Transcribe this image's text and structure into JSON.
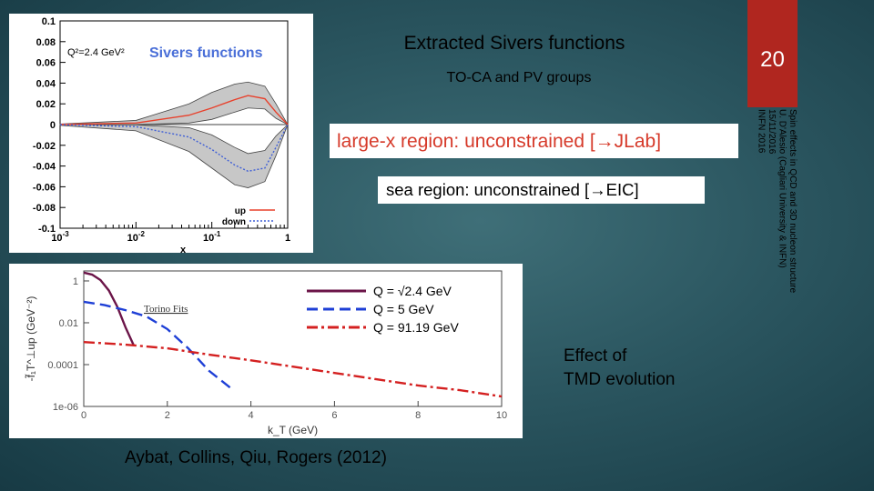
{
  "slide": {
    "title": "Extracted Sivers functions",
    "subtitle": "TO-CA and PV groups",
    "page_number": "20",
    "footer_lines": [
      "Spin effects in QCD and 3D nucleon structure",
      "U. D'Alesio (Cagliari University & INFN)",
      "15/11/2016",
      "INFN 2016"
    ],
    "jlab_note": "large-x region: unconstrained [→JLab]",
    "eic_note": "sea region: unconstrained [→EIC]",
    "tmd_note_lines": [
      "Effect of",
      "TMD evolution"
    ],
    "citation": "Aybat, Collins, Qiu, Rogers (2012)",
    "colors": {
      "accent_red": "#b0261f",
      "up_curve": "#e8402b",
      "down_curve": "#3f5fd6",
      "jlab_text": "#d63a2a"
    }
  },
  "chart_data": [
    {
      "type": "area",
      "title": "Sivers functions",
      "annotation": "Q²=2.4 GeV²",
      "xlabel": "x",
      "ylabel": "",
      "x_scale": "log",
      "xlim": [
        0.001,
        1
      ],
      "ylim": [
        -0.1,
        0.1
      ],
      "y_ticks": [
        "0.1",
        "0.08",
        "0.06",
        "0.04",
        "0.02",
        "0",
        "-0.02",
        "-0.04",
        "-0.06",
        "-0.08",
        "-0.1"
      ],
      "x_tick_labels": [
        "10^-3",
        "10^-2",
        "10^-1",
        "1"
      ],
      "legend": [
        {
          "name": "up",
          "style": "solid"
        },
        {
          "name": "down",
          "style": "dotted"
        }
      ],
      "series": [
        {
          "name": "up",
          "x": [
            0.001,
            0.01,
            0.05,
            0.1,
            0.2,
            0.3,
            0.5,
            0.7,
            1
          ],
          "values": [
            0.0001,
            0.0015,
            0.009,
            0.016,
            0.024,
            0.028,
            0.025,
            0.012,
            0
          ],
          "band_upper": [
            0.0005,
            0.004,
            0.02,
            0.031,
            0.039,
            0.041,
            0.037,
            0.02,
            0
          ],
          "band_lower": [
            0,
            0,
            0.0015,
            0.005,
            0.012,
            0.016,
            0.015,
            0.006,
            0
          ]
        },
        {
          "name": "down",
          "x": [
            0.001,
            0.01,
            0.05,
            0.1,
            0.2,
            0.3,
            0.5,
            0.7,
            1
          ],
          "values": [
            -0.0001,
            -0.002,
            -0.012,
            -0.024,
            -0.039,
            -0.045,
            -0.042,
            -0.022,
            0
          ],
          "band_upper": [
            0,
            -0.0003,
            -0.003,
            -0.01,
            -0.022,
            -0.028,
            -0.025,
            -0.011,
            0
          ],
          "band_lower": [
            -0.0008,
            -0.006,
            -0.026,
            -0.042,
            -0.058,
            -0.061,
            -0.055,
            -0.03,
            0
          ]
        }
      ]
    },
    {
      "type": "line",
      "title": "Torino Fits",
      "xlabel": "k_T (GeV)",
      "ylabel": "-f̃₁T^⊥up (GeV⁻²)",
      "y_scale": "log",
      "xlim": [
        0,
        10
      ],
      "ylim": [
        1e-06,
        3
      ],
      "x_ticks": [
        0,
        2,
        4,
        6,
        8,
        10
      ],
      "y_tick_labels": [
        {
          "v": 1,
          "label": "1"
        },
        {
          "v": 0.01,
          "label": "0.01"
        },
        {
          "v": 0.0001,
          "label": "0.0001"
        },
        {
          "v": 1e-06,
          "label": "1e-06"
        }
      ],
      "legend": [
        {
          "name": "Q = √2.4 GeV",
          "style": "solid",
          "color": "#6b1448"
        },
        {
          "name": "Q = 5 GeV",
          "style": "dashed",
          "color": "#1e3fd6"
        },
        {
          "name": "Q = 91.19 GeV",
          "style": "dashdot",
          "color": "#d42020"
        }
      ],
      "series": [
        {
          "name": "Q = √2.4 GeV",
          "x": [
            0,
            0.2,
            0.4,
            0.6,
            0.8,
            1.0,
            1.2
          ],
          "values": [
            2.5,
            2.0,
            1.1,
            0.35,
            0.06,
            0.006,
            0.0008
          ]
        },
        {
          "name": "Q = 5 GeV",
          "x": [
            0,
            0.5,
            1.0,
            1.5,
            2.0,
            2.5,
            3.0,
            3.5
          ],
          "values": [
            0.1,
            0.07,
            0.04,
            0.02,
            0.005,
            0.0006,
            5e-05,
            8e-06
          ]
        },
        {
          "name": "Q = 91.19 GeV",
          "x": [
            0,
            1,
            2,
            3,
            4,
            5,
            6,
            7,
            8,
            9,
            10
          ],
          "values": [
            0.0012,
            0.0009,
            0.0006,
            0.0003,
            0.00016,
            8e-05,
            4e-05,
            2e-05,
            1e-05,
            6e-06,
            3e-06
          ]
        }
      ]
    }
  ]
}
